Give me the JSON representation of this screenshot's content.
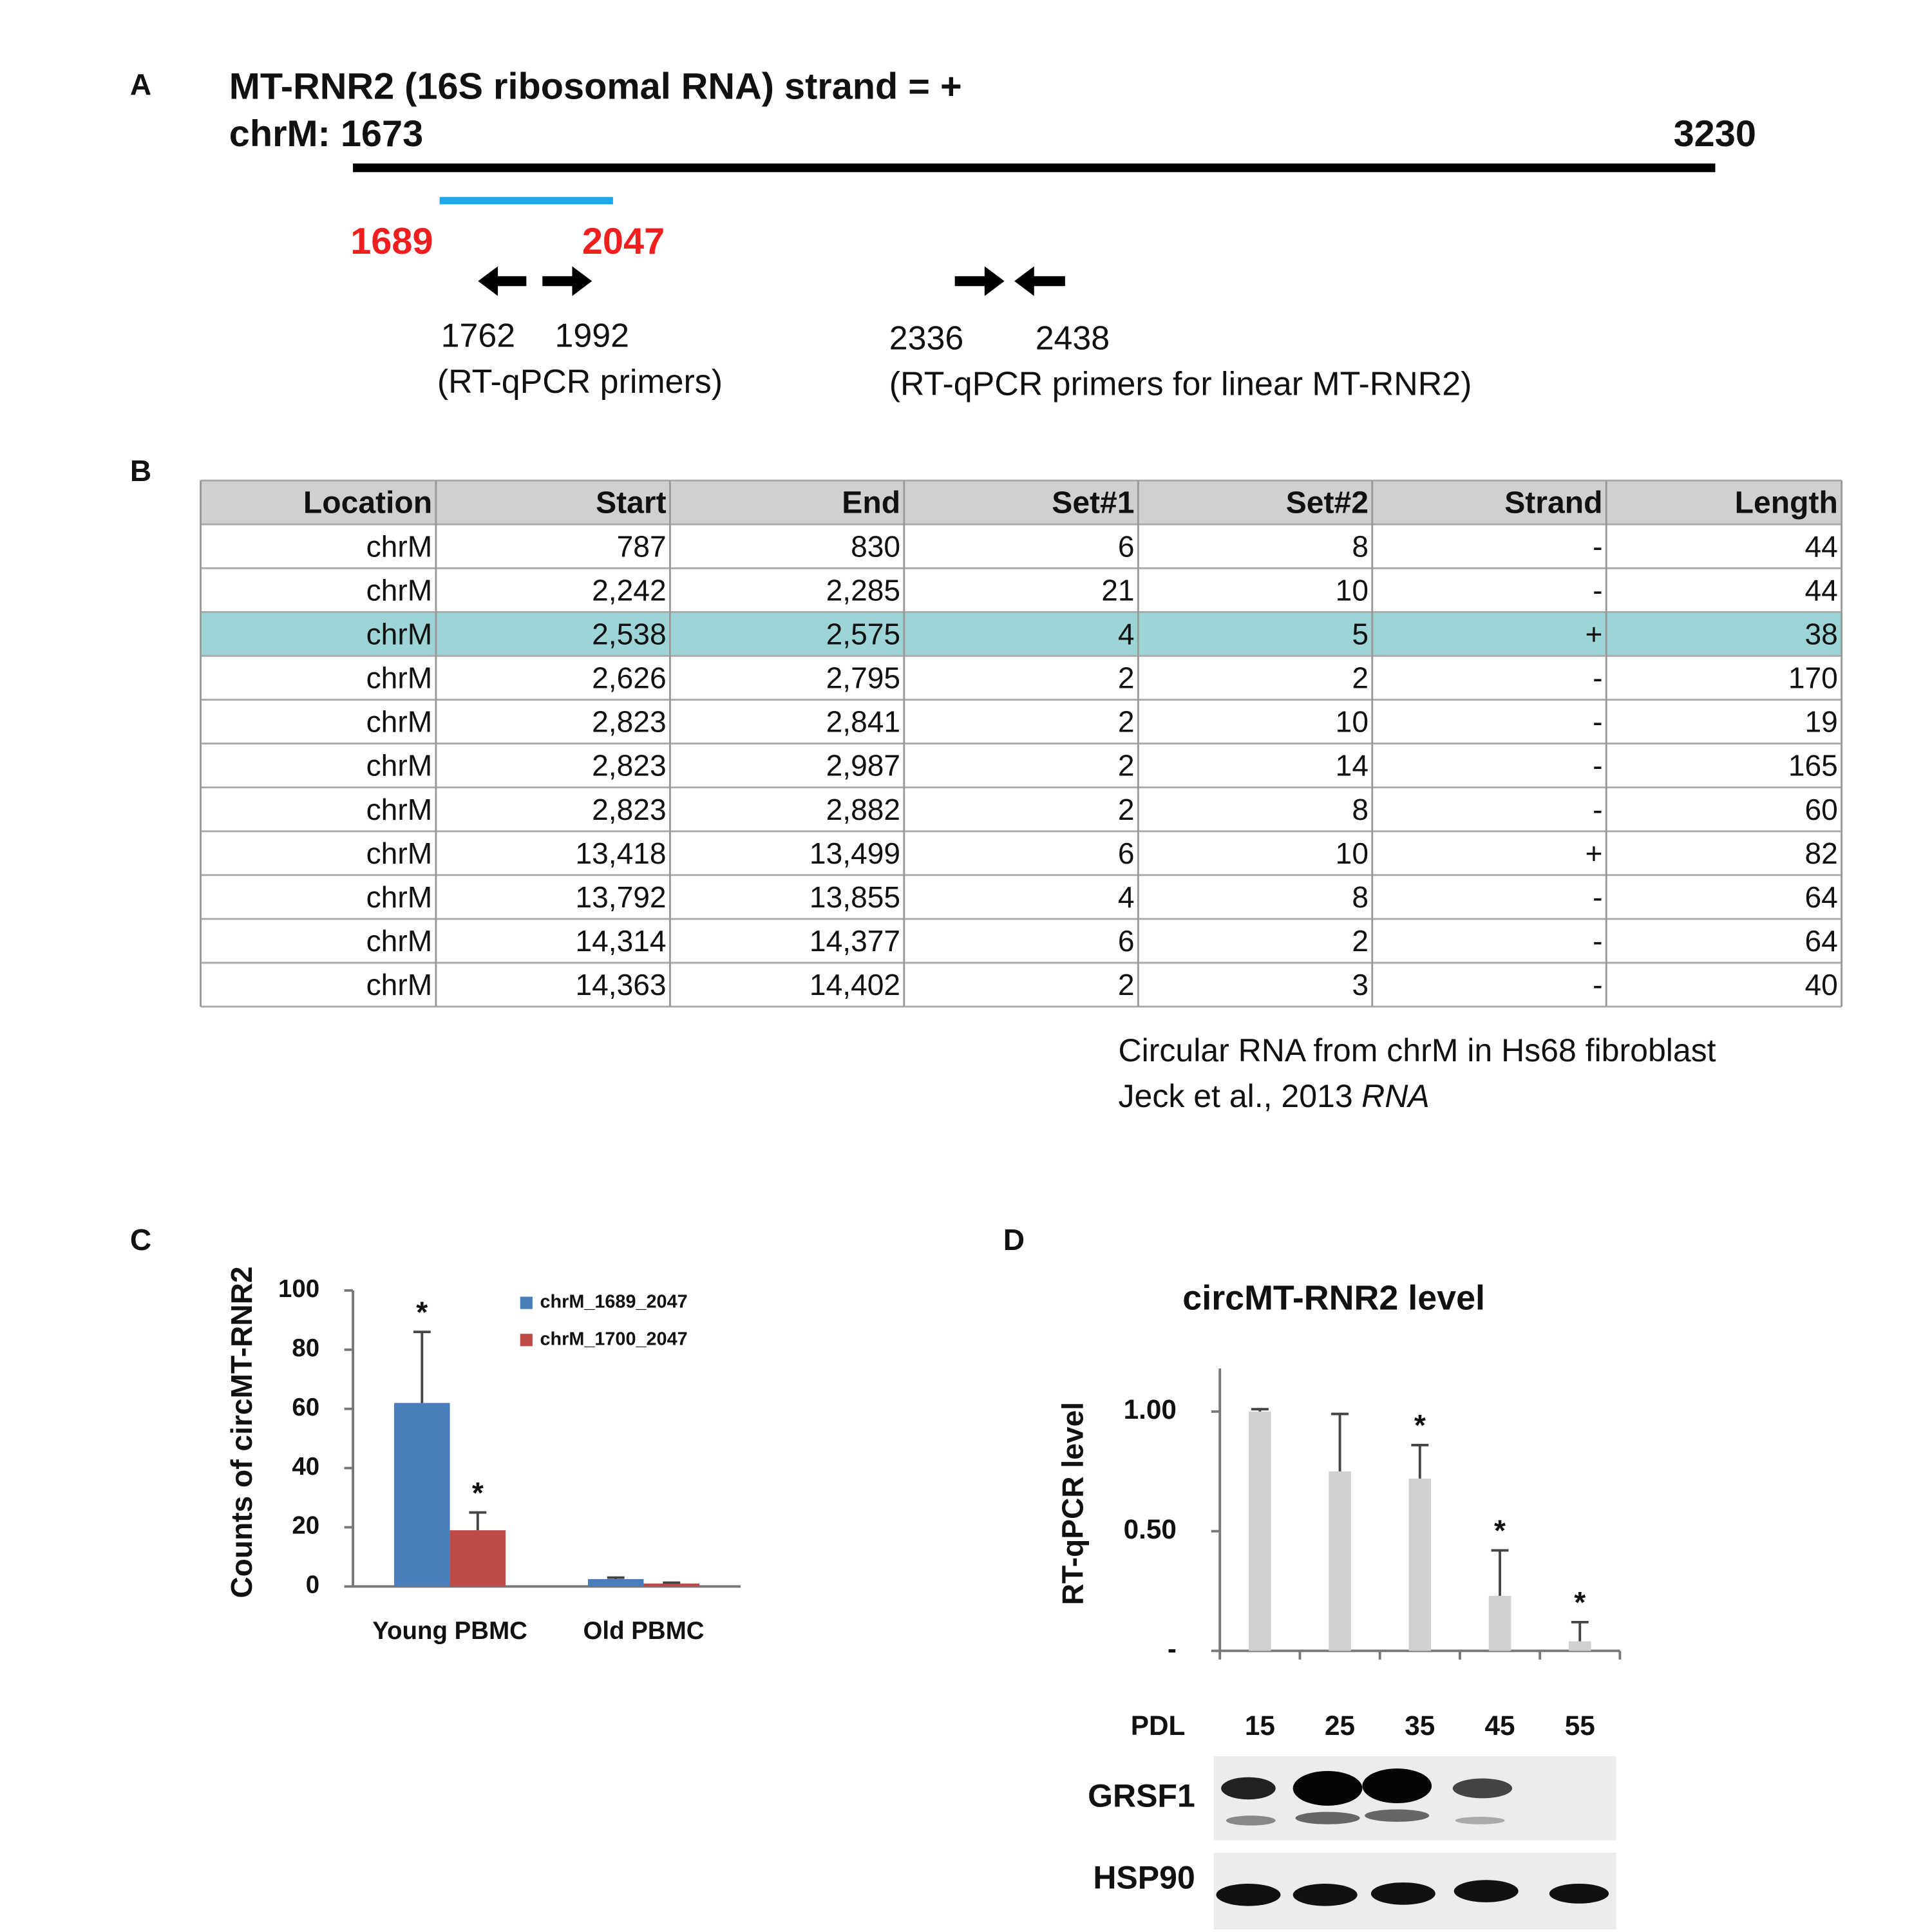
{
  "panel_labels": [
    "A",
    "B",
    "C",
    "D"
  ],
  "diagram": {
    "title": "MT-RNR2 (16S ribosomal RNA) strand = +",
    "start_label": "chrM: 1673",
    "end_label": "3230",
    "circ_start": "1689",
    "circ_end": "2047",
    "primers": [
      "1762",
      "1992"
    ],
    "primers_note": "(RT-qPCR primers)",
    "linear_primers": [
      "2336",
      "2438"
    ],
    "linear_primers_note": "(RT-qPCR primers for linear MT-RNR2)"
  },
  "table": {
    "header": [
      "Location",
      "Start",
      "End",
      "Set#1",
      "Set#2",
      "Strand",
      "Length"
    ],
    "rows": [
      [
        "chrM",
        "787",
        "830",
        "6",
        "8",
        "-",
        "44"
      ],
      [
        "chrM",
        "2,242",
        "2,285",
        "21",
        "10",
        "-",
        "44"
      ],
      [
        "chrM",
        "2,538",
        "2,575",
        "4",
        "5",
        "+",
        "38"
      ],
      [
        "chrM",
        "2,626",
        "2,795",
        "2",
        "2",
        "-",
        "170"
      ],
      [
        "chrM",
        "2,823",
        "2,841",
        "2",
        "10",
        "-",
        "19"
      ],
      [
        "chrM",
        "2,823",
        "2,987",
        "2",
        "14",
        "-",
        "165"
      ],
      [
        "chrM",
        "2,823",
        "2,882",
        "2",
        "8",
        "-",
        "60"
      ],
      [
        "chrM",
        "13,418",
        "13,499",
        "6",
        "10",
        "+",
        "82"
      ],
      [
        "chrM",
        "13,792",
        "13,855",
        "4",
        "8",
        "-",
        "64"
      ],
      [
        "chrM",
        "14,314",
        "14,377",
        "6",
        "2",
        "-",
        "64"
      ],
      [
        "chrM",
        "14,363",
        "14,402",
        "2",
        "3",
        "-",
        "40"
      ]
    ],
    "highlighted_row": 2,
    "highlight_color": "#9dd4d6"
  },
  "table_caption": {
    "line1": "Circular RNA from chrM in Hs68 fibroblast",
    "line2": "Jeck et al., 2013",
    "line2_italic": "RNA"
  },
  "chart_data": [
    {
      "type": "bar",
      "y_label": "Counts of circMT-RNR2",
      "categories": [
        "Young PBMC",
        "Old PBMC"
      ],
      "series": [
        {
          "name": "chrM_1689_2047",
          "color": "#4a7ebb",
          "values": [
            62,
            2.5
          ],
          "errors": [
            24,
            0.5
          ],
          "significance": [
            "*",
            null
          ]
        },
        {
          "name": "chrM_1700_2047",
          "color": "#be4b48",
          "values": [
            19,
            1
          ],
          "errors": [
            6,
            0.3
          ],
          "significance": [
            "*",
            null
          ]
        }
      ],
      "ylim": [
        0,
        100
      ],
      "yticks": [
        0,
        20,
        40,
        60,
        80,
        100
      ],
      "legend": "top-right"
    },
    {
      "type": "bar",
      "title": "circMT-RNR2 level",
      "y_label": "RT-qPCR level",
      "x_label": "PDL",
      "categories": [
        "15",
        "25",
        "35",
        "45",
        "55"
      ],
      "values": [
        1.0,
        0.75,
        0.72,
        0.23,
        0.04
      ],
      "errors": [
        0.01,
        0.24,
        0.14,
        0.19,
        0.08
      ],
      "significance": [
        null,
        null,
        "*",
        "*",
        "*"
      ],
      "color": "#d0d0d0",
      "ylim": [
        0,
        1.18
      ],
      "yticks": [
        {
          "value": 0,
          "label": "-"
        },
        {
          "value": 0.5,
          "label": "0.50"
        },
        {
          "value": 1,
          "label": "1.00"
        }
      ]
    }
  ],
  "blot": {
    "labels": [
      "GRSF1",
      "HSP90"
    ]
  }
}
